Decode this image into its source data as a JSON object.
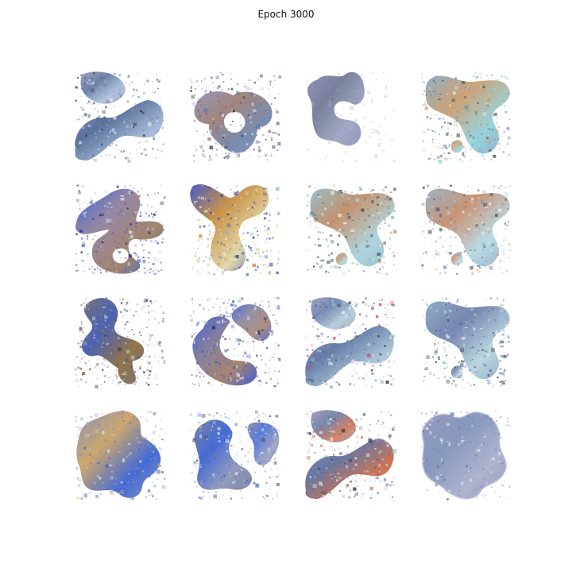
{
  "title": "Epoch 3000",
  "grid": {
    "rows": 4,
    "cols": 4
  },
  "samples": [
    {
      "id": 1,
      "style": "speckled",
      "palette": [
        "#8d90b8",
        "#4d6694",
        "#a2b8d8",
        "#6b8c84",
        "#30324a",
        "#d9ecf4"
      ]
    },
    {
      "id": 2,
      "style": "ring",
      "palette": [
        "#8d8eb5",
        "#9c7b72",
        "#6d84a9",
        "#d8ecf4",
        "#343846",
        "#5f739e"
      ]
    },
    {
      "id": 3,
      "style": "smooth",
      "palette": [
        "#8b8db7",
        "#6e7693",
        "#9aa2c0",
        "#7d8a73",
        "#b7bbd2",
        "#56607d"
      ]
    },
    {
      "id": 4,
      "style": "plume",
      "palette": [
        "#86a8c2",
        "#c99b6b",
        "#8fd1dc",
        "#6f92a8",
        "#d9eff4",
        "#3a4353"
      ]
    },
    {
      "id": 5,
      "style": "colorful-ring",
      "palette": [
        "#2b58d8",
        "#8f7e9b",
        "#9b7b5f",
        "#5667b5",
        "#111c8a",
        "#d0d8ef"
      ]
    },
    {
      "id": 6,
      "style": "striped",
      "palette": [
        "#3b4fbd",
        "#c58a3a",
        "#e0d5a5",
        "#84b4c9",
        "#102a8a",
        "#f2f0c2"
      ]
    },
    {
      "id": 7,
      "style": "plume",
      "palette": [
        "#8fb7c5",
        "#c08a60",
        "#a9d2dc",
        "#5d7a91",
        "#d7ecf1",
        "#3d4c5b"
      ]
    },
    {
      "id": 8,
      "style": "plume",
      "palette": [
        "#93acc0",
        "#c58c6a",
        "#b4d8e3",
        "#7792a6",
        "#d9ecf2",
        "#465665"
      ]
    },
    {
      "id": 9,
      "style": "dark-blob",
      "palette": [
        "#6b6870",
        "#3e56ad",
        "#8a6a38",
        "#b7b4a9",
        "#333743",
        "#b9d6e6"
      ]
    },
    {
      "id": 10,
      "style": "blue-arc",
      "palette": [
        "#3151d3",
        "#7d7795",
        "#9d7a66",
        "#4b65b6",
        "#252f77",
        "#d7dbf1"
      ]
    },
    {
      "id": 11,
      "style": "speckled",
      "palette": [
        "#8f92b9",
        "#5873a1",
        "#a9c5d6",
        "#d73d6f",
        "#30394f",
        "#d8edf5"
      ]
    },
    {
      "id": 12,
      "style": "plume",
      "palette": [
        "#87a5c1",
        "#6c7ca9",
        "#b6d4df",
        "#515d7c",
        "#dbeef5",
        "#2e3848"
      ]
    },
    {
      "id": 13,
      "style": "large-blob",
      "palette": [
        "#808bba",
        "#c9a060",
        "#355fd3",
        "#7a8fb2",
        "#a4b1cd",
        "#d2c29b"
      ]
    },
    {
      "id": 14,
      "style": "pair",
      "palette": [
        "#737a9b",
        "#365fd1",
        "#8c94b8",
        "#bad7e8",
        "#4e5a78",
        "#d9eef5"
      ]
    },
    {
      "id": 15,
      "style": "speckled",
      "palette": [
        "#8c8eb6",
        "#5a6c9a",
        "#cf6a43",
        "#a7c8d4",
        "#313548",
        "#d9eff5"
      ]
    },
    {
      "id": 16,
      "style": "haze",
      "palette": [
        "#8e93bd",
        "#7d8fb7",
        "#a8aeca",
        "#c5cae0",
        "#687398",
        "#f2f3f8"
      ]
    }
  ]
}
